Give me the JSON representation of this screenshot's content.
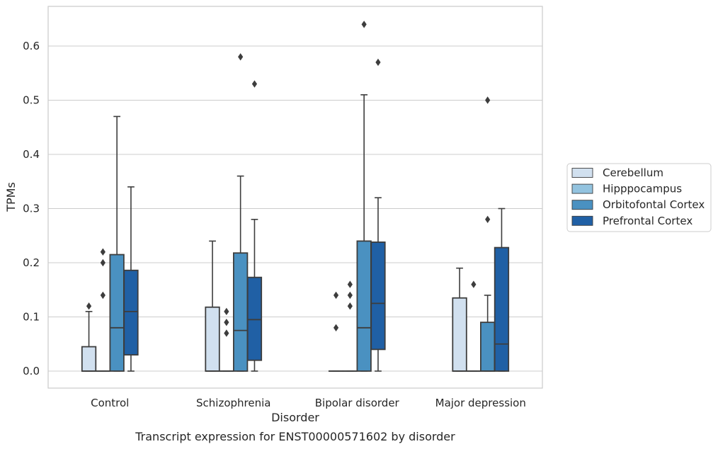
{
  "chart_data": {
    "type": "box",
    "title": "",
    "caption": "Transcript expression for ENST00000571602 by disorder",
    "xlabel": "Disorder",
    "ylabel": "TPMs",
    "ylim": [
      -0.03,
      0.67
    ],
    "yticks": [
      0.0,
      0.1,
      0.2,
      0.3,
      0.4,
      0.5,
      0.6
    ],
    "ytick_labels": [
      "0.0",
      "0.1",
      "0.2",
      "0.3",
      "0.4",
      "0.5",
      "0.6"
    ],
    "grid": true,
    "legend_position": "right",
    "categories": [
      "Control",
      "Schizophrenia",
      "Bipolar disorder",
      "Major depression"
    ],
    "series": [
      {
        "name": "Cerebellum",
        "color": "#d1e0ef",
        "boxes": [
          {
            "category": "Control",
            "q1": 0.0,
            "median": 0.0,
            "q3": 0.045,
            "whisker_low": 0.0,
            "whisker_high": 0.11,
            "outliers": [
              0.12
            ]
          },
          {
            "category": "Schizophrenia",
            "q1": 0.0,
            "median": 0.0,
            "q3": 0.118,
            "whisker_low": 0.0,
            "whisker_high": 0.24,
            "outliers": []
          },
          {
            "category": "Bipolar disorder",
            "q1": 0.0,
            "median": 0.0,
            "q3": 0.0,
            "whisker_low": 0.0,
            "whisker_high": 0.0,
            "outliers": [
              0.08,
              0.14
            ]
          },
          {
            "category": "Major depression",
            "q1": 0.0,
            "median": 0.0,
            "q3": 0.135,
            "whisker_low": 0.0,
            "whisker_high": 0.19,
            "outliers": []
          }
        ]
      },
      {
        "name": "Hipppocampus",
        "color": "#93c3df",
        "boxes": [
          {
            "category": "Control",
            "q1": 0.0,
            "median": 0.0,
            "q3": 0.0,
            "whisker_low": 0.0,
            "whisker_high": 0.0,
            "outliers": [
              0.14,
              0.2,
              0.22
            ]
          },
          {
            "category": "Schizophrenia",
            "q1": 0.0,
            "median": 0.0,
            "q3": 0.0,
            "whisker_low": 0.0,
            "whisker_high": 0.0,
            "outliers": [
              0.07,
              0.09,
              0.11
            ]
          },
          {
            "category": "Bipolar disorder",
            "q1": 0.0,
            "median": 0.0,
            "q3": 0.0,
            "whisker_low": 0.0,
            "whisker_high": 0.0,
            "outliers": [
              0.12,
              0.14,
              0.16
            ]
          },
          {
            "category": "Major depression",
            "q1": 0.0,
            "median": 0.0,
            "q3": 0.0,
            "whisker_low": 0.0,
            "whisker_high": 0.0,
            "outliers": [
              0.16
            ]
          }
        ]
      },
      {
        "name": "Orbitofontal Cortex",
        "color": "#4a91c1",
        "boxes": [
          {
            "category": "Control",
            "q1": 0.0,
            "median": 0.08,
            "q3": 0.215,
            "whisker_low": 0.0,
            "whisker_high": 0.47,
            "outliers": []
          },
          {
            "category": "Schizophrenia",
            "q1": 0.0,
            "median": 0.075,
            "q3": 0.218,
            "whisker_low": 0.0,
            "whisker_high": 0.36,
            "outliers": [
              0.58
            ]
          },
          {
            "category": "Bipolar disorder",
            "q1": 0.0,
            "median": 0.08,
            "q3": 0.24,
            "whisker_low": 0.0,
            "whisker_high": 0.51,
            "outliers": [
              0.64
            ]
          },
          {
            "category": "Major depression",
            "q1": 0.0,
            "median": 0.0,
            "q3": 0.09,
            "whisker_low": 0.0,
            "whisker_high": 0.14,
            "outliers": [
              0.28,
              0.5
            ]
          }
        ]
      },
      {
        "name": "Prefrontal Cortex",
        "color": "#2060a5",
        "boxes": [
          {
            "category": "Control",
            "q1": 0.03,
            "median": 0.11,
            "q3": 0.186,
            "whisker_low": 0.0,
            "whisker_high": 0.34,
            "outliers": []
          },
          {
            "category": "Schizophrenia",
            "q1": 0.02,
            "median": 0.095,
            "q3": 0.173,
            "whisker_low": 0.0,
            "whisker_high": 0.28,
            "outliers": [
              0.53
            ]
          },
          {
            "category": "Bipolar disorder",
            "q1": 0.04,
            "median": 0.125,
            "q3": 0.238,
            "whisker_low": 0.0,
            "whisker_high": 0.32,
            "outliers": [
              0.57
            ]
          },
          {
            "category": "Major depression",
            "q1": 0.0,
            "median": 0.05,
            "q3": 0.228,
            "whisker_low": 0.0,
            "whisker_high": 0.3,
            "outliers": []
          }
        ]
      }
    ]
  }
}
